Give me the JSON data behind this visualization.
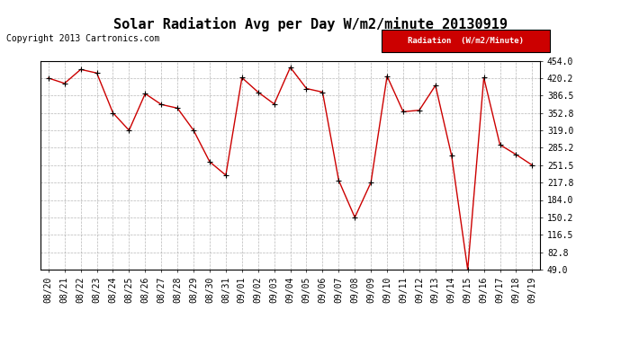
{
  "title": "Solar Radiation Avg per Day W/m2/minute 20130919",
  "copyright": "Copyright 2013 Cartronics.com",
  "legend_label": "Radiation  (W/m2/Minute)",
  "legend_bg": "#cc0000",
  "legend_text_color": "#ffffff",
  "line_color": "#cc0000",
  "marker_color": "#000000",
  "bg_color": "#ffffff",
  "plot_bg_color": "#ffffff",
  "grid_color": "#999999",
  "ytick_labels": [
    "49.0",
    "82.8",
    "116.5",
    "150.2",
    "184.0",
    "217.8",
    "251.5",
    "285.2",
    "319.0",
    "352.8",
    "386.5",
    "420.2",
    "454.0"
  ],
  "ytick_values": [
    49.0,
    82.8,
    116.5,
    150.2,
    184.0,
    217.8,
    251.5,
    285.2,
    319.0,
    352.8,
    386.5,
    420.2,
    454.0
  ],
  "ylim": [
    49.0,
    454.0
  ],
  "dates": [
    "08/20",
    "08/21",
    "08/22",
    "08/23",
    "08/24",
    "08/25",
    "08/26",
    "08/27",
    "08/28",
    "08/29",
    "08/30",
    "08/31",
    "09/01",
    "09/02",
    "09/03",
    "09/04",
    "09/05",
    "09/06",
    "09/07",
    "09/08",
    "09/09",
    "09/10",
    "09/11",
    "09/12",
    "09/13",
    "09/14",
    "09/15",
    "09/16",
    "09/17",
    "09/18",
    "09/19"
  ],
  "values": [
    420.2,
    410.0,
    437.0,
    430.0,
    352.8,
    319.0,
    390.0,
    369.0,
    362.0,
    319.0,
    258.0,
    232.0,
    421.0,
    393.0,
    370.0,
    441.0,
    400.0,
    393.0,
    222.0,
    150.2,
    218.0,
    424.0,
    355.0,
    358.0,
    406.0,
    270.0,
    49.0,
    421.0,
    291.0,
    272.0,
    251.5
  ],
  "title_fontsize": 11,
  "tick_fontsize": 7,
  "copyright_fontsize": 7
}
